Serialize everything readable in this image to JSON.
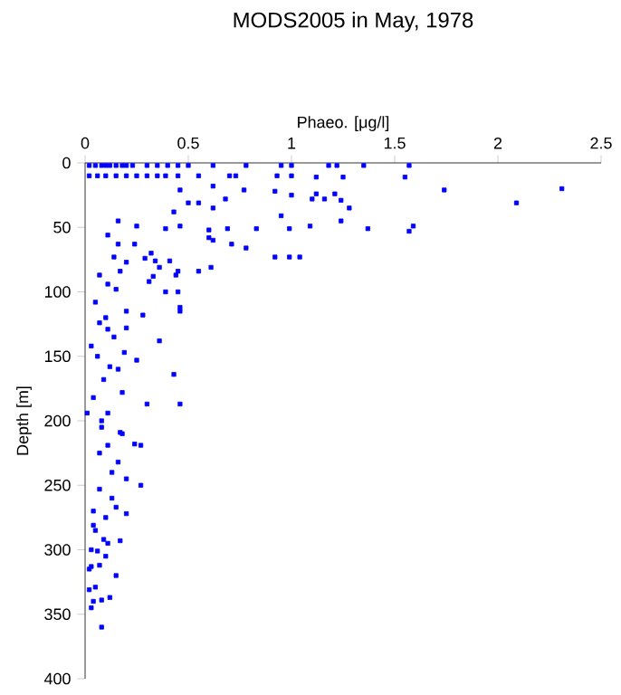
{
  "chart_data": {
    "type": "scatter",
    "title": "MODS2005 in May, 1978",
    "xlabel": "Phaeo. [μg/l]",
    "ylabel": "Depth [m]",
    "xlim": [
      0,
      2.5
    ],
    "xticks": [
      0,
      0.5,
      1,
      1.5,
      2,
      2.5
    ],
    "ylim": [
      400,
      0
    ],
    "yticks": [
      0,
      50,
      100,
      150,
      200,
      250,
      300,
      350,
      400
    ],
    "marker": "square",
    "grid": false,
    "series": [
      {
        "color": "#0000ff",
        "x": [
          0.02,
          0.05,
          0.08,
          0.1,
          0.12,
          0.15,
          0.18,
          0.2,
          0.23,
          0.3,
          0.35,
          0.4,
          0.45,
          0.5,
          0.62,
          0.78,
          0.95,
          1.0,
          1.18,
          1.22,
          1.35,
          1.57,
          0.02,
          0.06,
          0.1,
          0.15,
          0.2,
          0.25,
          0.3,
          0.35,
          0.39,
          0.45,
          0.55,
          0.7,
          0.73,
          0.93,
          1.0,
          1.12,
          1.25,
          1.55,
          1.74,
          2.31,
          2.09,
          0.92,
          1.0,
          1.1,
          1.16,
          1.24,
          1.21,
          1.12,
          1.28,
          0.95,
          1.24,
          1.37,
          1.59,
          1.57,
          0.99,
          1.09,
          0.92,
          0.99,
          1.04,
          0.46,
          0.62,
          0.77,
          0.68,
          0.5,
          0.55,
          0.43,
          0.62,
          0.16,
          0.25,
          0.39,
          0.46,
          0.6,
          0.69,
          0.83,
          0.6,
          0.78,
          0.62,
          0.71,
          0.11,
          0.16,
          0.24,
          0.32,
          0.34,
          0.41,
          0.14,
          0.2,
          0.29,
          0.36,
          0.45,
          0.55,
          0.61,
          0.17,
          0.07,
          0.11,
          0.15,
          0.33,
          0.31,
          0.44,
          0.39,
          0.45,
          0.46,
          0.46,
          0.28,
          0.2,
          0.07,
          0.11,
          0.2,
          0.36,
          0.19,
          0.25,
          0.16,
          0.09,
          0.43,
          0.46,
          0.3,
          0.11,
          0.01,
          0.08,
          0.17,
          0.18,
          0.24,
          0.27,
          0.11,
          0.07,
          0.16,
          0.27,
          0.13,
          0.07,
          0.15,
          0.04,
          0.2,
          0.1,
          0.04,
          0.09,
          0.11,
          0.17,
          0.03,
          0.06,
          0.03,
          0.07,
          0.02,
          0.05,
          0.04,
          0.12,
          0.08,
          0.02,
          0.08,
          0.05,
          0.1,
          0.14,
          0.03,
          0.06,
          0.12,
          0.18,
          0.04,
          0.08,
          0.13,
          0.2,
          0.05,
          0.1,
          0.15,
          0.03
        ],
        "values": [
          2,
          2,
          2,
          2,
          2,
          2,
          2,
          2,
          2,
          2,
          2,
          2,
          2,
          2,
          2,
          2,
          2,
          2,
          2,
          2,
          2,
          2,
          10,
          10,
          10,
          10,
          10,
          10,
          10,
          10,
          10,
          10,
          10,
          10,
          10,
          10,
          10,
          11,
          11,
          11,
          21,
          20,
          31,
          22,
          25,
          28,
          28,
          29,
          24,
          24,
          35,
          41,
          45,
          51,
          49,
          53,
          51,
          49,
          73,
          73,
          73,
          21,
          18,
          21,
          28,
          31,
          31,
          38,
          35,
          45,
          49,
          51,
          49,
          52,
          51,
          51,
          58,
          66,
          60,
          63,
          56,
          63,
          63,
          70,
          76,
          76,
          73,
          77,
          74,
          81,
          84,
          84,
          81,
          84,
          87,
          94,
          98,
          88,
          92,
          87,
          100,
          100,
          112,
          115,
          118,
          115,
          124,
          129,
          128,
          138,
          147,
          153,
          160,
          168,
          164,
          187,
          187,
          194,
          194,
          200,
          209,
          210,
          218,
          219,
          219,
          225,
          232,
          250,
          260,
          253,
          267,
          270,
          272,
          275,
          281,
          292,
          295,
          293,
          300,
          301,
          313,
          312,
          315,
          329,
          340,
          337,
          339,
          331,
          360,
          108,
          120,
          135,
          142,
          150,
          158,
          178,
          182,
          205,
          240,
          245,
          285,
          305,
          320,
          345
        ]
      }
    ]
  }
}
